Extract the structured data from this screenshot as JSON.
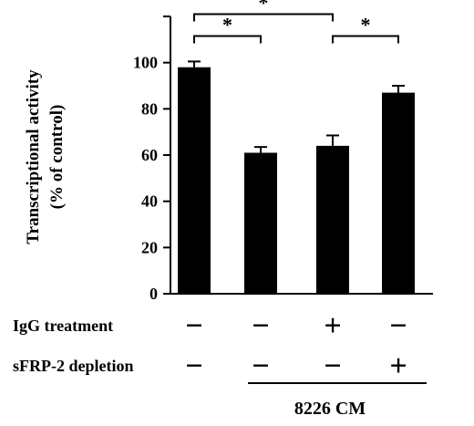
{
  "chart_data": {
    "type": "bar",
    "ylabel_line1": "Transcriptional activity",
    "ylabel_line2": "(% of control)",
    "ylim": [
      0,
      120
    ],
    "yticks": [
      "0",
      "20",
      "40",
      "60",
      "80",
      "100"
    ],
    "values": [
      98,
      61,
      64,
      87
    ],
    "errors": [
      2.5,
      2.5,
      4.5,
      3.0
    ],
    "conditions": [
      {
        "label": "IgG treatment",
        "values": [
          "−",
          "−",
          "+",
          "−"
        ]
      },
      {
        "label": "sFRP-2 depletion",
        "values": [
          "−",
          "−",
          "−",
          "+"
        ]
      }
    ],
    "group_label": "8226 CM",
    "significance": [
      {
        "from": 0,
        "to": 1,
        "mark": "*"
      },
      {
        "from": 0,
        "to": 2,
        "mark": "*"
      },
      {
        "from": 2,
        "to": 3,
        "mark": "*"
      }
    ],
    "colors": {
      "bar": "#000000",
      "axis": "#000000"
    }
  }
}
